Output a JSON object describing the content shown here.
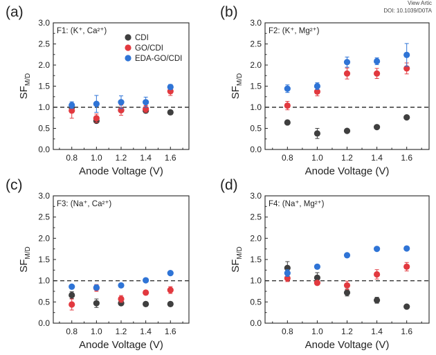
{
  "header": {
    "view_text": "View Artic",
    "doi": "DOI: 10.1039/D0TA"
  },
  "colors": {
    "CDI": "#3f3f3f",
    "GO/CDI": "#e2393f",
    "EDA-GO/CDI": "#2f74d6",
    "axis": "#222222",
    "reference": "#333333"
  },
  "chart_data": [
    {
      "type": "scatter",
      "panel_label": "(a)",
      "title": "F1: (K⁺, Ca²⁺)",
      "xlabel": "Anode Voltage (V)",
      "ylabel": "SFM/D",
      "ylabel_main": "SF",
      "ylabel_sub": "M/D",
      "x": [
        0.8,
        1.0,
        1.2,
        1.4,
        1.6
      ],
      "x_ticks": [
        "0.8",
        "1.0",
        "1.2",
        "1.4",
        "1.6"
      ],
      "xlim": [
        0.65,
        1.75
      ],
      "ylim": [
        0.0,
        3.0
      ],
      "y_ticks": [
        "0.0",
        "0.5",
        "1.0",
        "1.5",
        "2.0",
        "2.5",
        "3.0"
      ],
      "reference_line": 1.0,
      "legend": [
        "CDI",
        "GO/CDI",
        "EDA-GO/CDI"
      ],
      "legend_position": "top-right",
      "series": [
        {
          "name": "CDI",
          "values": [
            1.0,
            0.68,
            0.93,
            0.92,
            0.88
          ],
          "errors": [
            0.05,
            0.05,
            0.05,
            0.05,
            0.04
          ]
        },
        {
          "name": "GO/CDI",
          "values": [
            0.92,
            0.74,
            0.93,
            0.96,
            1.38
          ],
          "errors": [
            0.18,
            0.1,
            0.12,
            0.08,
            0.1
          ]
        },
        {
          "name": "EDA-GO/CDI",
          "values": [
            1.05,
            1.08,
            1.12,
            1.12,
            1.48
          ],
          "errors": [
            0.08,
            0.2,
            0.15,
            0.12,
            0.06
          ]
        }
      ]
    },
    {
      "type": "scatter",
      "panel_label": "(b)",
      "title": "F2: (K⁺, Mg²⁺)",
      "xlabel": "Anode Voltage (V)",
      "ylabel": "SFM/D",
      "ylabel_main": "SF",
      "ylabel_sub": "M/D",
      "x": [
        0.8,
        1.0,
        1.2,
        1.4,
        1.6
      ],
      "x_ticks": [
        "0.8",
        "1.0",
        "1.2",
        "1.4",
        "1.6"
      ],
      "xlim": [
        0.65,
        1.75
      ],
      "ylim": [
        0.0,
        3.0
      ],
      "y_ticks": [
        "0.0",
        "0.5",
        "1.0",
        "1.5",
        "2.0",
        "2.5",
        "3.0"
      ],
      "reference_line": 1.0,
      "series": [
        {
          "name": "CDI",
          "values": [
            0.64,
            0.38,
            0.44,
            0.53,
            0.76
          ],
          "errors": [
            0.03,
            0.12,
            0.04,
            0.04,
            0.04
          ]
        },
        {
          "name": "GO/CDI",
          "values": [
            1.04,
            1.37,
            1.8,
            1.8,
            1.92
          ],
          "errors": [
            0.1,
            0.1,
            0.13,
            0.12,
            0.13
          ]
        },
        {
          "name": "EDA-GO/CDI",
          "values": [
            1.44,
            1.5,
            2.07,
            2.09,
            2.24
          ],
          "errors": [
            0.09,
            0.08,
            0.12,
            0.08,
            0.27
          ]
        }
      ]
    },
    {
      "type": "scatter",
      "panel_label": "(c)",
      "title": "F3: (Na⁺, Ca²⁺)",
      "xlabel": "Anode Voltage (V)",
      "ylabel": "SFM/D",
      "ylabel_main": "SF",
      "ylabel_sub": "M/D",
      "x": [
        0.8,
        1.0,
        1.2,
        1.4,
        1.6
      ],
      "x_ticks": [
        "0.8",
        "1.0",
        "1.2",
        "1.4",
        "1.6"
      ],
      "xlim": [
        0.65,
        1.75
      ],
      "ylim": [
        0.0,
        3.0
      ],
      "y_ticks": [
        "0.0",
        "0.5",
        "1.0",
        "1.5",
        "2.0",
        "2.5",
        "3.0"
      ],
      "reference_line": 1.0,
      "series": [
        {
          "name": "CDI",
          "values": [
            0.66,
            0.47,
            0.47,
            0.45,
            0.45
          ],
          "errors": [
            0.08,
            0.1,
            0.05,
            0.03,
            0.03
          ]
        },
        {
          "name": "GO/CDI",
          "values": [
            0.44,
            0.83,
            0.57,
            0.72,
            0.78
          ],
          "errors": [
            0.13,
            0.08,
            0.08,
            0.05,
            0.08
          ]
        },
        {
          "name": "EDA-GO/CDI",
          "values": [
            0.86,
            0.84,
            0.89,
            1.01,
            1.18
          ],
          "errors": [
            0.04,
            0.06,
            0.04,
            0.03,
            0.04
          ]
        }
      ]
    },
    {
      "type": "scatter",
      "panel_label": "(d)",
      "title": "F4: (Na⁺, Mg²⁺)",
      "xlabel": "Anode Voltage (V)",
      "ylabel": "SFM/D",
      "ylabel_main": "SF",
      "ylabel_sub": "M/D",
      "x": [
        0.8,
        1.0,
        1.2,
        1.4,
        1.6
      ],
      "x_ticks": [
        "0.8",
        "1.0",
        "1.2",
        "1.4",
        "1.6"
      ],
      "xlim": [
        0.65,
        1.75
      ],
      "ylim": [
        0.0,
        3.0
      ],
      "y_ticks": [
        "0.0",
        "0.5",
        "1.0",
        "1.5",
        "2.0",
        "2.5",
        "3.0"
      ],
      "reference_line": 1.0,
      "series": [
        {
          "name": "CDI",
          "values": [
            1.3,
            1.07,
            0.72,
            0.54,
            0.39
          ],
          "errors": [
            0.15,
            0.12,
            0.08,
            0.07,
            0.03
          ]
        },
        {
          "name": "GO/CDI",
          "values": [
            1.06,
            0.95,
            0.89,
            1.15,
            1.33
          ],
          "errors": [
            0.08,
            0.05,
            0.1,
            0.11,
            0.1
          ]
        },
        {
          "name": "EDA-GO/CDI",
          "values": [
            1.18,
            1.33,
            1.6,
            1.75,
            1.76
          ],
          "errors": [
            0.08,
            0.04,
            0.04,
            0.03,
            0.03
          ]
        }
      ]
    }
  ]
}
